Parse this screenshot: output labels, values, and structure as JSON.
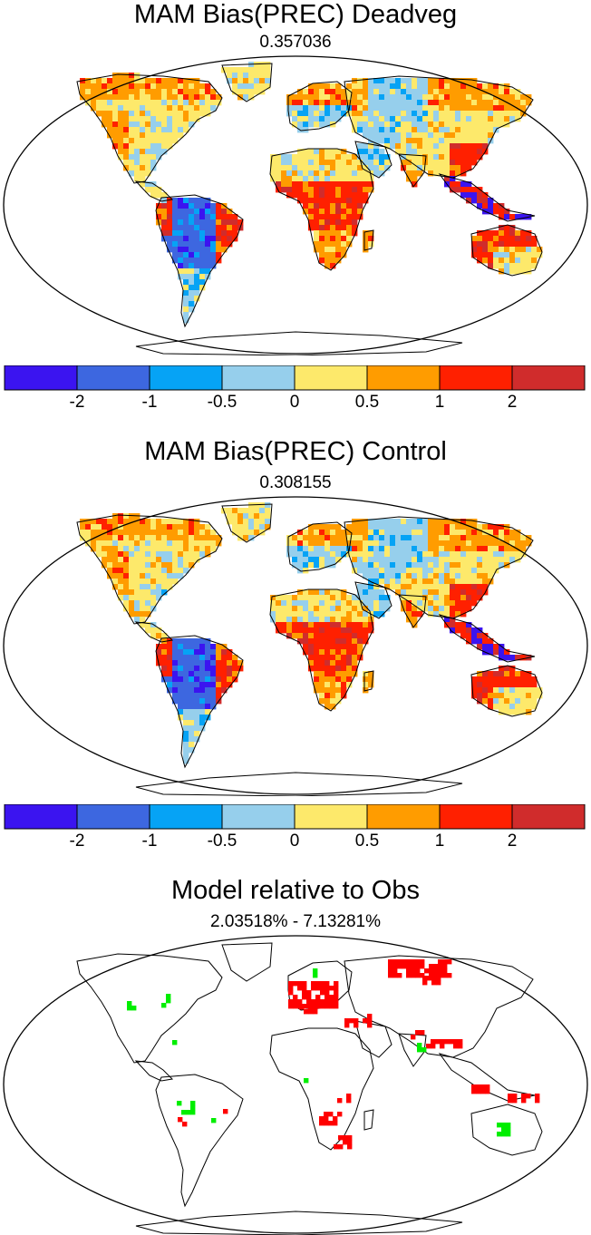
{
  "panels": [
    {
      "title": "MAM Bias(PREC) Deadveg",
      "subtitle": "0.357036"
    },
    {
      "title": "MAM Bias(PREC) Control",
      "subtitle": "0.308155"
    },
    {
      "title": "Model relative to Obs",
      "subtitle": "2.03518% - 7.13281%"
    }
  ],
  "colorbar": {
    "colors": [
      "#3b14f0",
      "#3d67e0",
      "#06a3f5",
      "#96cfec",
      "#fde96b",
      "#ff9c00",
      "#ff2000",
      "#d02c2c"
    ],
    "labels": [
      "-2",
      "-1",
      "-0.5",
      "0",
      "0.5",
      "1",
      "2"
    ]
  },
  "diff_colors": {
    "positive": "#ff0000",
    "negative": "#00ee00"
  }
}
